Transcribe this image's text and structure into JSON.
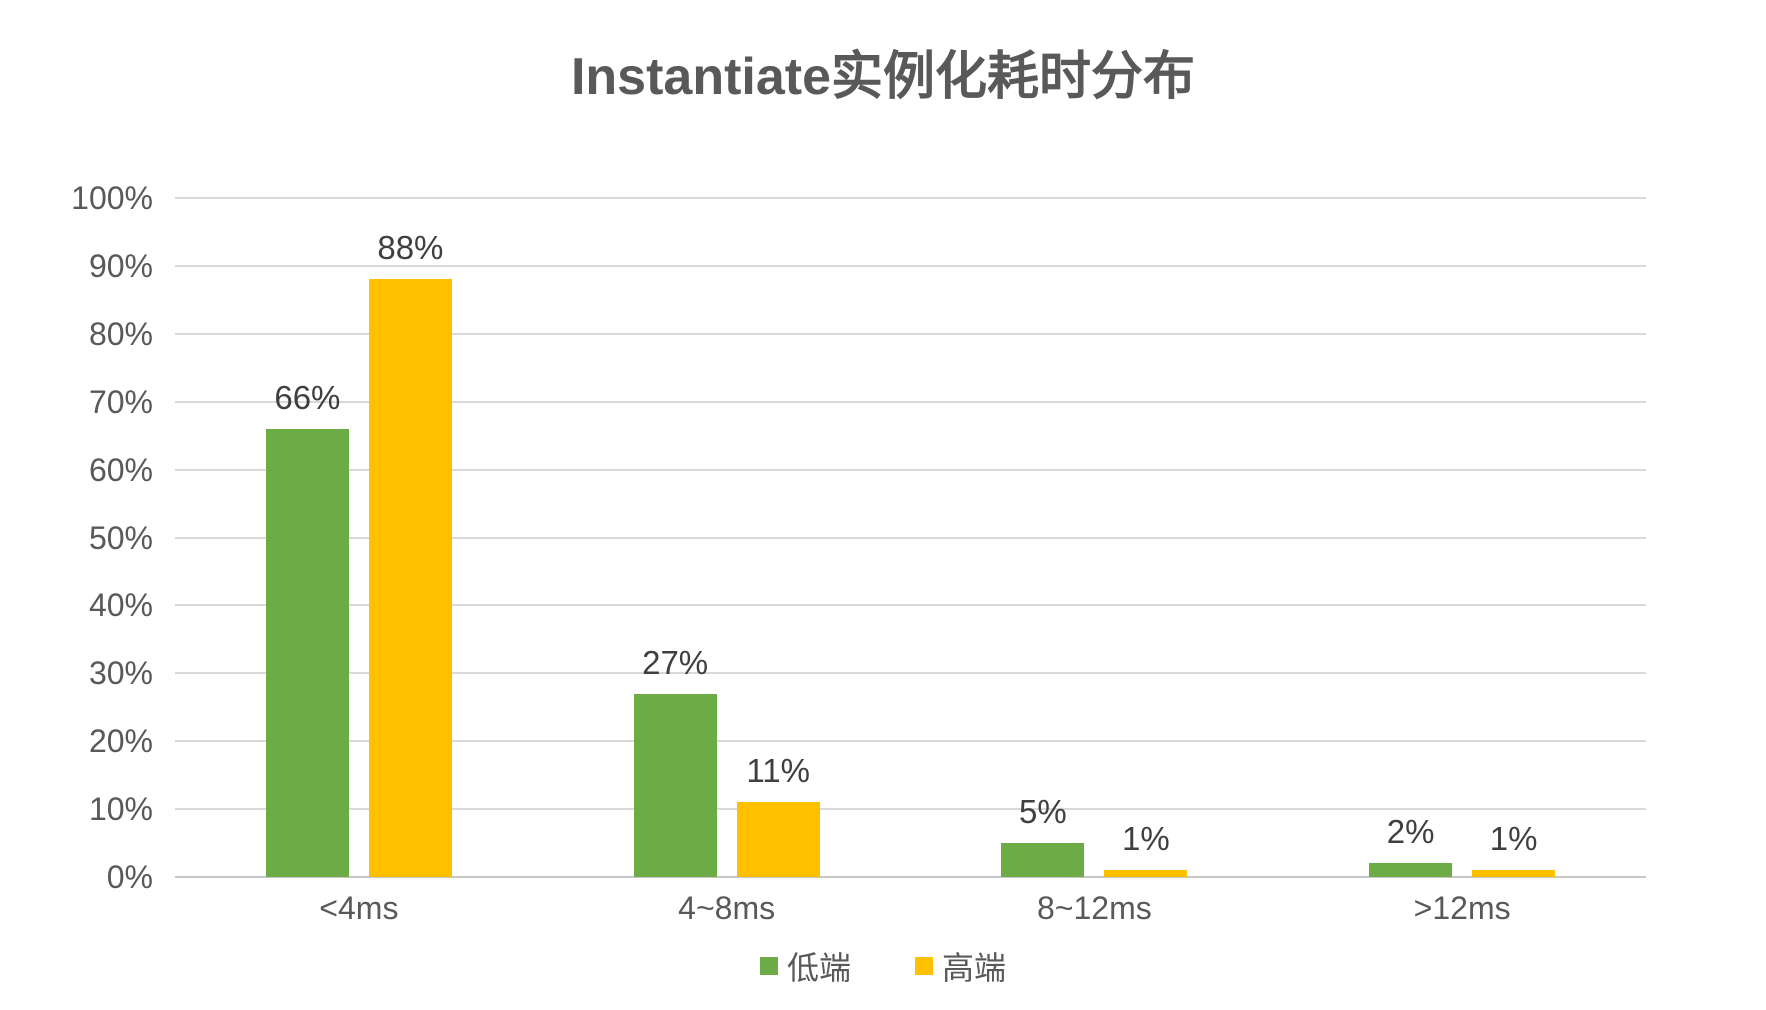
{
  "chart_data": {
    "type": "bar",
    "title": "Instantiate实例化耗时分布",
    "categories": [
      "<4ms",
      "4~8ms",
      "8~12ms",
      ">12ms"
    ],
    "series": [
      {
        "key": "low-end",
        "name": "低端",
        "color": "#6CAB45",
        "values": [
          66,
          27,
          5,
          2
        ],
        "labels": [
          "66%",
          "27%",
          "5%",
          "2%"
        ]
      },
      {
        "key": "high-end",
        "name": "高端",
        "color": "#FFC000",
        "values": [
          88,
          11,
          1,
          1
        ],
        "labels": [
          "88%",
          "11%",
          "1%",
          "1%"
        ]
      }
    ],
    "y_axis": {
      "min": 0,
      "max": 100,
      "step": 10,
      "tick_labels": [
        "0%",
        "10%",
        "20%",
        "30%",
        "40%",
        "50%",
        "60%",
        "70%",
        "80%",
        "90%",
        "100%"
      ]
    },
    "grid": true,
    "legend_position": "bottom",
    "colors": {
      "gridline": "#D9D9D9",
      "axis_line": "#C6C6C6",
      "axis_text": "#595959",
      "data_label": "#3F3F3F",
      "title_text": "#595959",
      "background": "#FFFFFF"
    }
  }
}
